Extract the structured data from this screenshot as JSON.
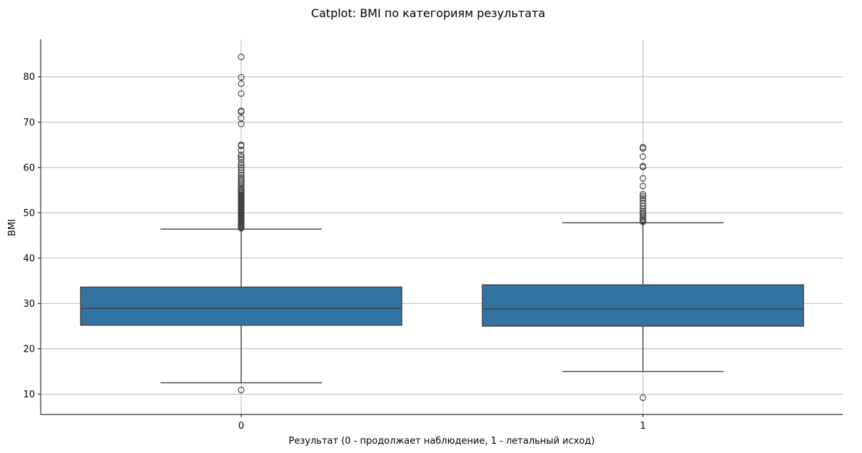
{
  "chart_data": {
    "type": "box",
    "title": "Catplot: BMI по категориям результата",
    "xlabel": "Результат (0 - продолжает наблюдение, 1 - летальный исход)",
    "ylabel": "BMI",
    "ylim": [
      5.5,
      88.3
    ],
    "yticks": [
      10,
      20,
      30,
      40,
      50,
      60,
      70,
      80
    ],
    "grid": true,
    "categories": [
      "0",
      "1"
    ],
    "box_color": "#3274a1",
    "line_color": "#3d3d3d",
    "boxes": [
      {
        "category": "0",
        "whisker_low": 12.5,
        "q1": 25.2,
        "median": 28.9,
        "q3": 33.6,
        "whisker_high": 46.4,
        "outliers": [
          10.9,
          46.6,
          46.8,
          47.0,
          47.2,
          47.4,
          47.6,
          47.8,
          48.0,
          48.2,
          48.4,
          48.6,
          48.8,
          49.0,
          49.2,
          49.4,
          49.6,
          49.8,
          50.0,
          50.2,
          50.4,
          50.6,
          50.8,
          51.0,
          51.2,
          51.4,
          51.6,
          51.8,
          52.0,
          52.2,
          52.4,
          52.6,
          52.8,
          53.0,
          53.2,
          53.4,
          53.6,
          53.8,
          54.0,
          54.3,
          54.6,
          54.9,
          55.2,
          55.5,
          55.8,
          56.2,
          56.6,
          57.0,
          57.4,
          57.8,
          58.3,
          58.8,
          59.4,
          60.0,
          60.5,
          61.0,
          61.8,
          62.3,
          62.8,
          63.8,
          64.8,
          65.0,
          69.6,
          70.9,
          72.3,
          72.5,
          76.3,
          78.5,
          79.9,
          84.4
        ]
      },
      {
        "category": "1",
        "whisker_low": 15.0,
        "q1": 25.0,
        "median": 28.8,
        "q3": 34.1,
        "whisker_high": 47.8,
        "outliers": [
          9.2,
          48.0,
          48.2,
          48.5,
          48.8,
          49.2,
          49.6,
          50.0,
          50.4,
          50.9,
          51.5,
          52.1,
          52.7,
          53.2,
          53.7,
          54.1,
          55.9,
          57.6,
          60.1,
          60.3,
          62.4,
          64.2,
          64.5
        ]
      }
    ]
  }
}
